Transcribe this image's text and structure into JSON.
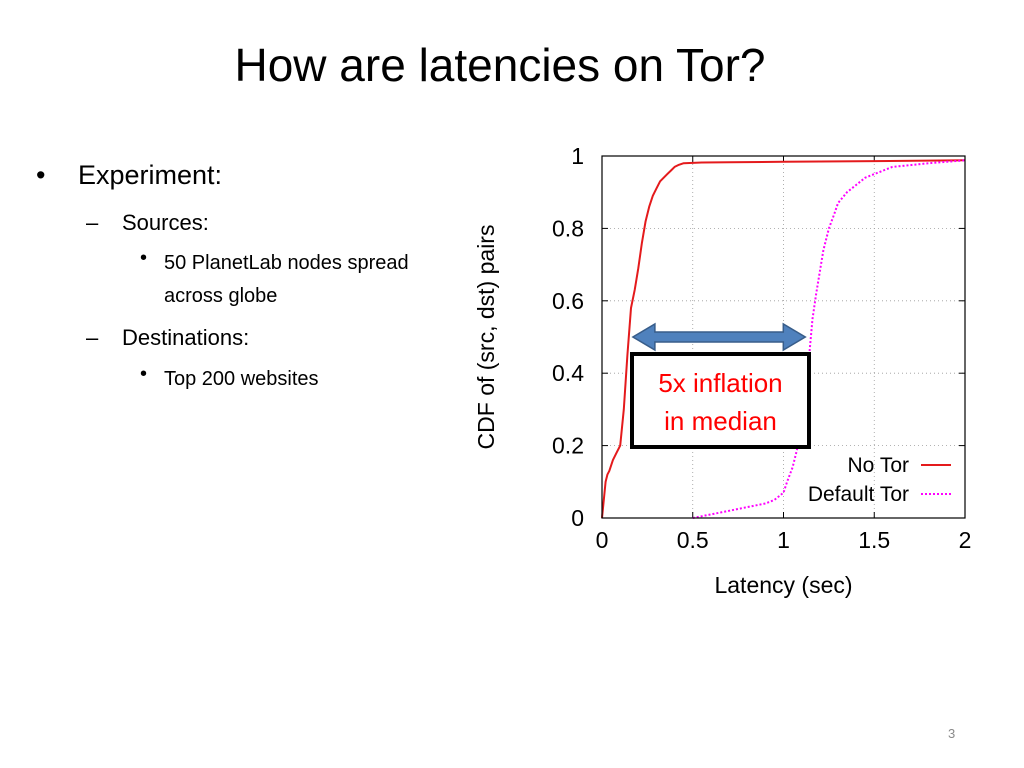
{
  "slide": {
    "title": "How are latencies on Tor?",
    "page_number": "3",
    "bullets": {
      "experiment": "Experiment:",
      "sources": "Sources:",
      "sources_detail": "50 PlanetLab nodes spread across globe",
      "destinations": "Destinations:",
      "destinations_detail": "Top 200 websites"
    },
    "markers": {
      "bullet": "•",
      "dash": "–"
    }
  },
  "chart_data": {
    "type": "line",
    "title": "",
    "xlabel": "Latency (sec)",
    "ylabel": "CDF of (src, dst) pairs",
    "xlim": [
      0,
      2
    ],
    "ylim": [
      0,
      1
    ],
    "xticks": [
      "0",
      "0.5",
      "1",
      "1.5",
      "2"
    ],
    "yticks": [
      "0",
      "0.2",
      "0.4",
      "0.6",
      "0.8",
      "1"
    ],
    "grid": true,
    "legend_position": "bottom-right",
    "annotation": {
      "text_line1": "5x inflation",
      "text_line2": "in median",
      "arrow_from_x": 0.17,
      "arrow_to_x": 1.12,
      "arrow_y": 0.5
    },
    "series": [
      {
        "name": "No Tor",
        "color": "#e41a1c",
        "style": "solid",
        "x": [
          0,
          0.01,
          0.02,
          0.03,
          0.04,
          0.06,
          0.08,
          0.1,
          0.12,
          0.14,
          0.16,
          0.18,
          0.2,
          0.22,
          0.24,
          0.26,
          0.28,
          0.3,
          0.32,
          0.34,
          0.36,
          0.38,
          0.4,
          0.42,
          0.45,
          0.55,
          0.7,
          1.0,
          1.5,
          2.0
        ],
        "y": [
          0,
          0.05,
          0.1,
          0.12,
          0.13,
          0.16,
          0.18,
          0.2,
          0.3,
          0.45,
          0.58,
          0.63,
          0.69,
          0.76,
          0.82,
          0.86,
          0.89,
          0.91,
          0.93,
          0.94,
          0.95,
          0.96,
          0.97,
          0.975,
          0.98,
          0.982,
          0.983,
          0.984,
          0.986,
          0.988
        ]
      },
      {
        "name": "Default Tor",
        "color": "#ff00ff",
        "style": "dotted",
        "x": [
          0.5,
          0.6,
          0.7,
          0.8,
          0.9,
          0.95,
          1.0,
          1.02,
          1.05,
          1.08,
          1.1,
          1.12,
          1.14,
          1.16,
          1.18,
          1.2,
          1.22,
          1.25,
          1.28,
          1.3,
          1.35,
          1.4,
          1.45,
          1.5,
          1.55,
          1.6,
          1.7,
          1.8,
          1.9,
          2.0
        ],
        "y": [
          0,
          0.01,
          0.02,
          0.03,
          0.04,
          0.05,
          0.07,
          0.1,
          0.14,
          0.2,
          0.26,
          0.34,
          0.44,
          0.55,
          0.62,
          0.68,
          0.74,
          0.8,
          0.84,
          0.87,
          0.9,
          0.92,
          0.94,
          0.95,
          0.96,
          0.97,
          0.975,
          0.98,
          0.984,
          0.988
        ]
      }
    ]
  }
}
